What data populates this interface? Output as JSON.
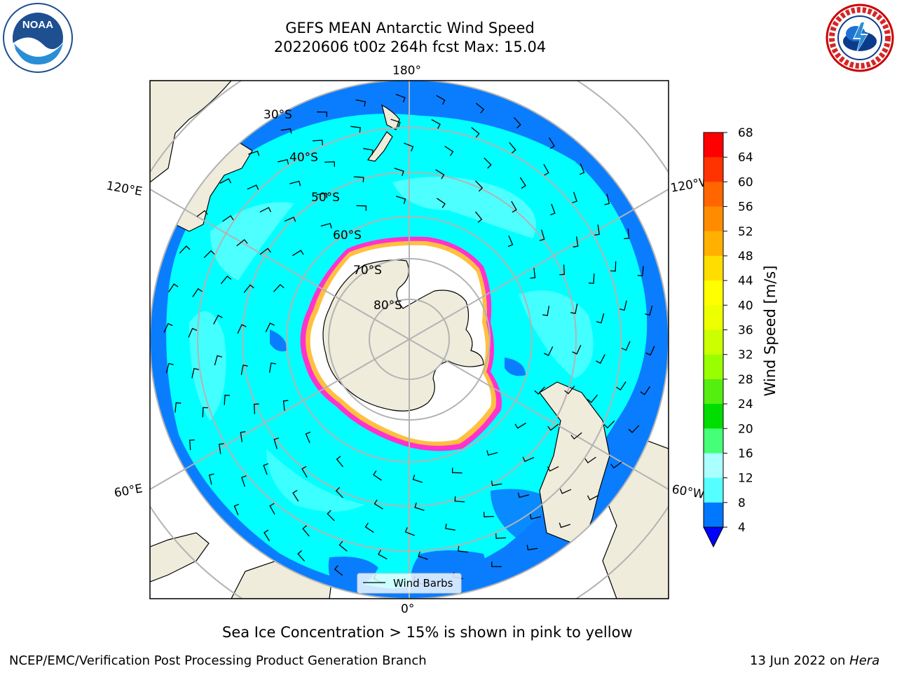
{
  "title": {
    "line1": "GEFS MEAN Antarctic Wind Speed",
    "line2": "20220606 t00z 264h fcst   Max: 15.04"
  },
  "map": {
    "projection": "south polar stereographic",
    "longitude_labels": [
      "180°",
      "120°E",
      "120°W",
      "60°E",
      "60°W",
      "0°"
    ],
    "latitude_labels": [
      "30°S",
      "40°S",
      "50°S",
      "60°S",
      "70°S",
      "80°S"
    ],
    "legend_label": "Wind Barbs"
  },
  "colorbar": {
    "label": "Wind Speed [m/s]",
    "ticks": [
      "68",
      "64",
      "60",
      "56",
      "52",
      "48",
      "44",
      "40",
      "36",
      "32",
      "28",
      "24",
      "20",
      "16",
      "12",
      "8",
      "4"
    ],
    "colors": [
      "#ff0000",
      "#ff3300",
      "#ff6600",
      "#ff8c00",
      "#ffb000",
      "#ffdd00",
      "#ffff00",
      "#eeff00",
      "#ccff00",
      "#99ff00",
      "#55ee11",
      "#00dd00",
      "#44ff77",
      "#aaffff",
      "#55ffff",
      "#00ffff",
      "#0077ff"
    ],
    "extend_color": "#0000ff"
  },
  "caption": "Sea Ice Concentration > 15% is shown in pink to yellow",
  "footer": {
    "left": "NCEP/EMC/Verification Post Processing Product Generation Branch",
    "right_date": "13 Jun 2022 on ",
    "right_host": "Hera"
  },
  "logos": {
    "left": "NOAA",
    "right": "NATIONAL WEATHER SERVICE"
  }
}
